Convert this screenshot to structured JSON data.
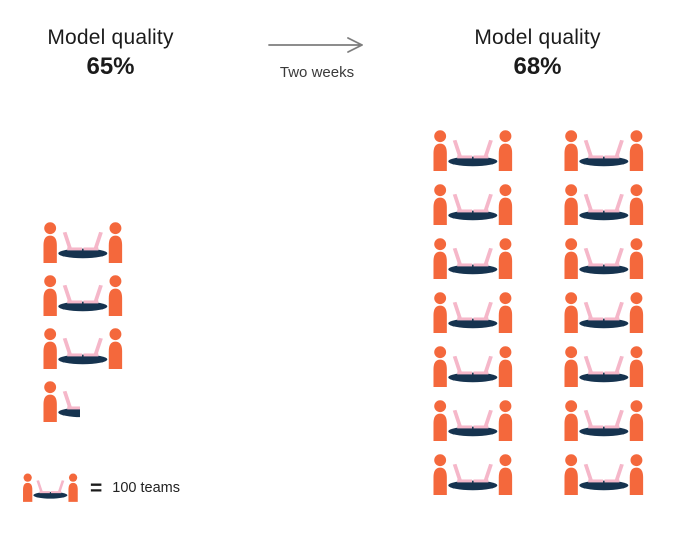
{
  "left_panel": {
    "title": "Model quality",
    "value": "65%",
    "full_icons": 3,
    "partial_icons": 1
  },
  "arrow": {
    "label": "Two weeks"
  },
  "right_panel": {
    "title": "Model quality",
    "value": "68%",
    "full_icons": 14,
    "columns": 2
  },
  "legend": {
    "equals": "=",
    "label": "100 teams"
  },
  "icons": {
    "team_icon": "two-people-seated-at-table-with-laptops",
    "arrow_icon": "right-arrow"
  },
  "colors": {
    "person": "#F4683C",
    "table": "#16334F",
    "laptop": "#F5B7C9",
    "arrow": "#7d7d7d",
    "text": "#1b1b1b"
  },
  "chart_data": {
    "type": "pictogram",
    "title": "Model quality before and after two weeks",
    "unit_per_icon": 100,
    "unit_label": "teams",
    "legend": "1 icon = 100 teams",
    "annotation": "Two weeks",
    "series": [
      {
        "name": "Model quality 65%",
        "icons": 3.5,
        "teams": 350
      },
      {
        "name": "Model quality 68%",
        "icons": 14,
        "teams": 1400
      }
    ]
  }
}
